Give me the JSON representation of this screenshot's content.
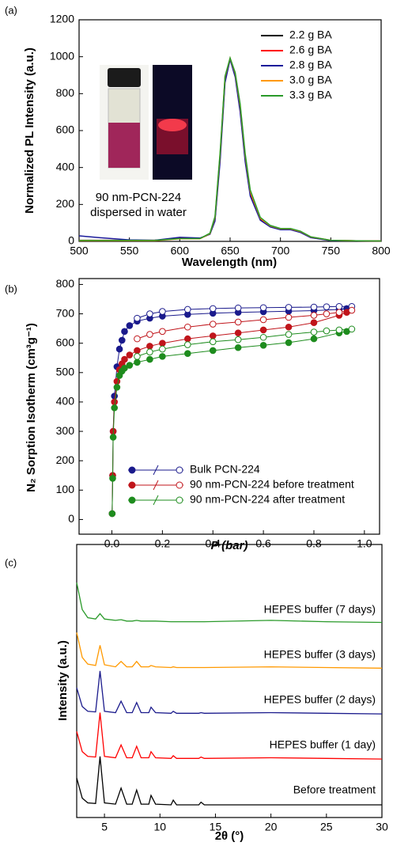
{
  "chart_data": [
    {
      "type": "line",
      "panel_label": "(a)",
      "xlabel": "Wavelength (nm)",
      "ylabel": "Normalized PL Intensity (a.u.)",
      "annotations": [
        "90 nm-PCN-224",
        "dispersed in water"
      ],
      "xlim": [
        500,
        800
      ],
      "xticks": [
        500,
        550,
        600,
        650,
        700,
        750,
        800
      ],
      "ylim": [
        0,
        1200
      ],
      "yticks": [
        0,
        200,
        400,
        600,
        800,
        1000,
        1200
      ],
      "legend": "upper right",
      "x": [
        500,
        525,
        550,
        575,
        600,
        620,
        630,
        635,
        640,
        645,
        650,
        655,
        660,
        665,
        670,
        680,
        690,
        700,
        710,
        720,
        730,
        750,
        775,
        800
      ],
      "series": [
        {
          "name": "2.2 g BA",
          "color": "#000000",
          "values": [
            5,
            5,
            5,
            5,
            15,
            15,
            40,
            120,
            450,
            880,
            990,
            900,
            720,
            450,
            260,
            120,
            80,
            65,
            65,
            50,
            22,
            5,
            3,
            2
          ]
        },
        {
          "name": "2.6 g BA",
          "color": "#ff0000",
          "values": [
            6,
            6,
            6,
            6,
            16,
            16,
            40,
            125,
            460,
            885,
            990,
            905,
            725,
            455,
            262,
            122,
            82,
            66,
            66,
            51,
            23,
            5,
            3,
            2
          ]
        },
        {
          "name": "2.8 g BA",
          "color": "#1a1a9a",
          "values": [
            30,
            18,
            8,
            6,
            22,
            18,
            38,
            110,
            430,
            860,
            985,
            890,
            700,
            430,
            245,
            115,
            78,
            63,
            63,
            48,
            20,
            4,
            3,
            2
          ]
        },
        {
          "name": "3.0 g BA",
          "color": "#ff9900",
          "values": [
            4,
            4,
            4,
            4,
            14,
            14,
            42,
            130,
            470,
            890,
            992,
            910,
            735,
            465,
            270,
            126,
            84,
            68,
            68,
            53,
            24,
            6,
            3,
            2
          ]
        },
        {
          "name": "3.3 g BA",
          "color": "#2a9a2a",
          "values": [
            5,
            5,
            5,
            5,
            15,
            15,
            44,
            135,
            480,
            895,
            993,
            915,
            745,
            475,
            278,
            130,
            86,
            70,
            70,
            55,
            25,
            6,
            3,
            2
          ]
        }
      ]
    },
    {
      "type": "scatter",
      "panel_label": "(b)",
      "xlabel": "P (bar)",
      "ylabel": "N₂ Sorption Isotherm (cm³g⁻¹)",
      "xlim": [
        -0.13,
        1.06
      ],
      "xticks": [
        {
          "value": 0,
          "label": "0.0"
        },
        {
          "value": 0.2,
          "label": "0.2"
        },
        {
          "value": 0.4,
          "label": "0.4"
        },
        {
          "value": 0.6,
          "label": "0.6"
        },
        {
          "value": 0.8,
          "label": "0.8"
        },
        {
          "value": 1,
          "label": "1.0"
        }
      ],
      "ylim": [
        -50,
        820
      ],
      "yticks": [
        0,
        100,
        200,
        300,
        400,
        500,
        600,
        700,
        800
      ],
      "legend": "lower center",
      "series": [
        {
          "name": "Bulk PCN-224",
          "color": "#1a1a8c",
          "x": [
            0.001,
            0.003,
            0.005,
            0.01,
            0.02,
            0.03,
            0.04,
            0.05,
            0.07,
            0.1,
            0.15,
            0.2,
            0.3,
            0.4,
            0.5,
            0.6,
            0.7,
            0.8,
            0.9,
            0.93
          ],
          "values": [
            20,
            150,
            300,
            420,
            520,
            580,
            610,
            640,
            660,
            675,
            685,
            692,
            698,
            702,
            705,
            707,
            709,
            711,
            715,
            718
          ],
          "desorption_x": [
            0.95,
            0.9,
            0.85,
            0.8,
            0.7,
            0.6,
            0.5,
            0.4,
            0.3,
            0.2,
            0.15,
            0.1
          ],
          "desorption_values": [
            725,
            725,
            724,
            723,
            722,
            721,
            720,
            718,
            715,
            708,
            700,
            685
          ]
        },
        {
          "name": "90 nm-PCN-224 before treatment",
          "color": "#c0151b",
          "x": [
            0.001,
            0.003,
            0.005,
            0.01,
            0.02,
            0.03,
            0.04,
            0.05,
            0.07,
            0.1,
            0.15,
            0.2,
            0.3,
            0.4,
            0.5,
            0.6,
            0.7,
            0.8,
            0.9,
            0.93
          ],
          "values": [
            20,
            150,
            300,
            400,
            470,
            510,
            530,
            545,
            560,
            575,
            590,
            600,
            615,
            625,
            635,
            645,
            655,
            670,
            695,
            705
          ],
          "desorption_x": [
            0.95,
            0.9,
            0.85,
            0.8,
            0.7,
            0.6,
            0.5,
            0.4,
            0.3,
            0.2,
            0.15,
            0.1
          ],
          "desorption_values": [
            712,
            705,
            700,
            695,
            688,
            680,
            672,
            665,
            655,
            640,
            630,
            615
          ]
        },
        {
          "name": "90 nm-PCN-224 after treatment",
          "color": "#1e8c1e",
          "x": [
            0.001,
            0.003,
            0.005,
            0.01,
            0.02,
            0.03,
            0.04,
            0.05,
            0.07,
            0.1,
            0.15,
            0.2,
            0.3,
            0.4,
            0.5,
            0.6,
            0.7,
            0.8,
            0.9,
            0.93
          ],
          "values": [
            20,
            140,
            280,
            380,
            450,
            490,
            505,
            515,
            525,
            535,
            545,
            555,
            565,
            575,
            585,
            593,
            602,
            615,
            635,
            640
          ],
          "desorption_x": [
            0.95,
            0.9,
            0.85,
            0.8,
            0.7,
            0.6,
            0.5,
            0.4,
            0.3,
            0.2,
            0.15,
            0.1
          ],
          "desorption_values": [
            648,
            645,
            642,
            638,
            630,
            620,
            612,
            605,
            595,
            580,
            570,
            555
          ]
        }
      ]
    },
    {
      "type": "stacked-line",
      "panel_label": "(c)",
      "xlabel": "2θ (°)",
      "ylabel": "Intensity (a.u.)",
      "xlim": [
        2.5,
        30
      ],
      "xticks": [
        5,
        10,
        15,
        20,
        25,
        30
      ],
      "x": [
        2.5,
        3,
        3.5,
        4.2,
        4.6,
        5,
        6,
        6.5,
        7,
        7.5,
        7.9,
        8.3,
        9,
        9.2,
        9.6,
        11,
        11.2,
        11.5,
        13.5,
        13.7,
        14,
        20,
        25,
        30
      ],
      "series": [
        {
          "name": "Before treatment",
          "color": "#000000",
          "values": [
            40,
            10,
            3,
            2,
            72,
            3,
            1,
            25,
            1,
            1,
            22,
            1,
            1,
            14,
            1,
            0,
            7,
            0,
            0,
            4,
            0,
            0,
            0,
            0
          ]
        },
        {
          "name": "HEPES buffer (1 day)",
          "color": "#ff0000",
          "values": [
            42,
            12,
            5,
            4,
            70,
            5,
            3,
            22,
            3,
            3,
            20,
            3,
            3,
            12,
            3,
            2,
            6,
            2,
            2,
            4,
            2,
            3,
            2,
            1
          ]
        },
        {
          "name": "HEPES buffer (2 days)",
          "color": "#1a1a8c",
          "values": [
            40,
            12,
            5,
            4,
            65,
            5,
            3,
            20,
            3,
            3,
            18,
            3,
            3,
            11,
            3,
            2,
            5,
            2,
            2,
            3,
            2,
            3,
            2,
            1
          ]
        },
        {
          "name": "HEPES buffer (3 days)",
          "color": "#ff9900",
          "values": [
            55,
            18,
            8,
            6,
            36,
            7,
            4,
            12,
            4,
            4,
            12,
            4,
            4,
            6,
            4,
            3,
            4,
            3,
            3,
            3,
            3,
            4,
            3,
            2
          ]
        },
        {
          "name": "HEPES buffer (7 days)",
          "color": "#2a9a2a",
          "values": [
            62,
            22,
            10,
            8,
            16,
            8,
            6,
            7,
            5,
            5,
            6,
            5,
            5,
            5,
            5,
            4,
            4,
            4,
            4,
            4,
            4,
            6,
            4,
            3
          ]
        }
      ]
    }
  ]
}
